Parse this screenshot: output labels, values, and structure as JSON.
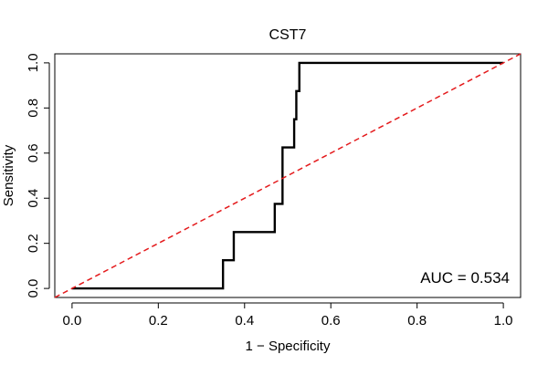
{
  "chart_data": {
    "type": "line",
    "title": "CST7",
    "xlabel": "1 − Specificity",
    "ylabel": "Sensitivity",
    "xlim": [
      -0.04,
      1.04
    ],
    "ylim": [
      -0.04,
      1.04
    ],
    "x_ticks": [
      0.0,
      0.2,
      0.4,
      0.6,
      0.8,
      1.0
    ],
    "x_tick_labels": [
      "0.0",
      "0.2",
      "0.4",
      "0.6",
      "0.8",
      "1.0"
    ],
    "y_ticks": [
      0.0,
      0.2,
      0.4,
      0.6,
      0.8,
      1.0
    ],
    "y_tick_labels": [
      "0.0",
      "0.2",
      "0.4",
      "0.6",
      "0.8",
      "1.0"
    ],
    "grid": false,
    "series": [
      {
        "style": "step",
        "color": "#000000",
        "x": [
          0.0,
          0.35,
          0.35,
          0.375,
          0.375,
          0.47,
          0.47,
          0.488,
          0.488,
          0.515,
          0.515,
          0.52,
          0.52,
          0.527,
          0.527,
          1.0
        ],
        "y": [
          0.0,
          0.0,
          0.125,
          0.125,
          0.25,
          0.25,
          0.375,
          0.375,
          0.625,
          0.625,
          0.75,
          0.75,
          0.875,
          0.875,
          1.0,
          1.0
        ]
      },
      {
        "style": "dashed",
        "color": "#e41a1c",
        "x": [
          -0.04,
          1.04
        ],
        "y": [
          -0.04,
          1.04
        ]
      }
    ],
    "annotation": "AUC = 0.534",
    "annotation_position": "bottom-right"
  }
}
